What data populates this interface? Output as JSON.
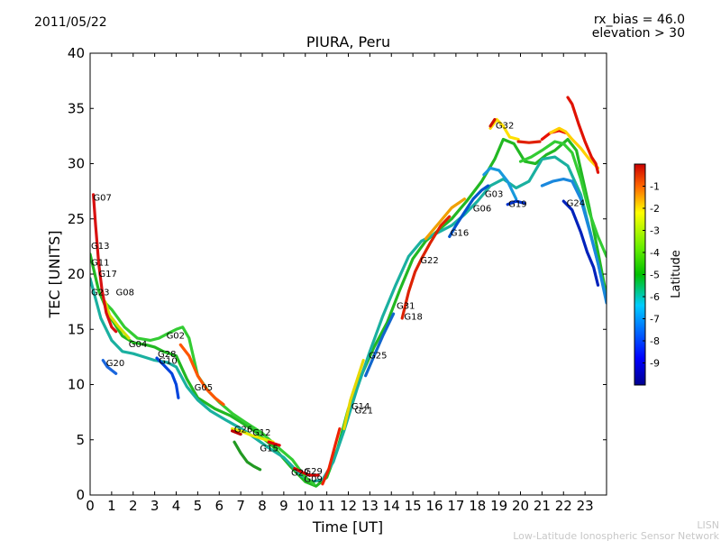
{
  "header": {
    "date": "2011/05/22",
    "rx_bias": "rx_bias = 46.0",
    "elevation": "elevation > 30",
    "title": "PIURA, Peru"
  },
  "footer": {
    "line1": "LISN",
    "line2": "Low-Latitude Ionospheric Sensor Network"
  },
  "colorbar": {
    "label": "Latitude",
    "ticks": [
      "-1",
      "-2",
      "-3",
      "-4",
      "-5",
      "-6",
      "-7",
      "-8",
      "-9"
    ],
    "range": [
      -10,
      0
    ]
  },
  "chart_data": {
    "type": "line",
    "title": "PIURA, Peru",
    "xlabel": "Time [UT]",
    "ylabel": "TEC [UNITS]",
    "xlim": [
      0,
      24
    ],
    "ylim": [
      0,
      40
    ],
    "xticks": [
      "0",
      "1",
      "2",
      "3",
      "4",
      "5",
      "6",
      "7",
      "8",
      "9",
      "10",
      "11",
      "12",
      "13",
      "14",
      "15",
      "16",
      "17",
      "18",
      "19",
      "20",
      "21",
      "22",
      "23"
    ],
    "yticks": [
      "0",
      "5",
      "10",
      "15",
      "20",
      "25",
      "30",
      "35",
      "40"
    ],
    "satellite_labels": [
      {
        "name": "G07",
        "x": 0.1,
        "y": 27.0
      },
      {
        "name": "G13",
        "x": 0.0,
        "y": 22.6
      },
      {
        "name": "G11",
        "x": 0.0,
        "y": 21.1
      },
      {
        "name": "G17",
        "x": 0.35,
        "y": 20.1
      },
      {
        "name": "G23",
        "x": 0.0,
        "y": 18.4
      },
      {
        "name": "G08",
        "x": 1.15,
        "y": 18.4
      },
      {
        "name": "G04",
        "x": 1.75,
        "y": 13.7
      },
      {
        "name": "G20",
        "x": 0.7,
        "y": 12.0
      },
      {
        "name": "G02",
        "x": 3.5,
        "y": 14.5
      },
      {
        "name": "G28",
        "x": 3.1,
        "y": 12.8
      },
      {
        "name": "G10",
        "x": 3.15,
        "y": 12.2
      },
      {
        "name": "G05",
        "x": 4.8,
        "y": 9.8
      },
      {
        "name": "G26",
        "x": 6.65,
        "y": 6.0
      },
      {
        "name": "G12",
        "x": 7.5,
        "y": 5.7
      },
      {
        "name": "G15",
        "x": 7.85,
        "y": 4.3
      },
      {
        "name": "G27",
        "x": 9.3,
        "y": 2.1
      },
      {
        "name": "G29",
        "x": 9.9,
        "y": 2.2
      },
      {
        "name": "G09",
        "x": 9.9,
        "y": 1.5
      },
      {
        "name": "G14",
        "x": 12.1,
        "y": 8.1
      },
      {
        "name": "G21",
        "x": 12.25,
        "y": 7.7
      },
      {
        "name": "G25",
        "x": 12.9,
        "y": 12.7
      },
      {
        "name": "G31",
        "x": 14.2,
        "y": 17.2
      },
      {
        "name": "G18",
        "x": 14.55,
        "y": 16.2
      },
      {
        "name": "G22",
        "x": 15.3,
        "y": 21.3
      },
      {
        "name": "G16",
        "x": 16.7,
        "y": 23.8
      },
      {
        "name": "G06",
        "x": 17.75,
        "y": 26.0
      },
      {
        "name": "G03",
        "x": 18.3,
        "y": 27.3
      },
      {
        "name": "G19",
        "x": 19.4,
        "y": 26.4
      },
      {
        "name": "G32",
        "x": 18.8,
        "y": 33.5
      },
      {
        "name": "G24",
        "x": 22.1,
        "y": 26.5
      }
    ],
    "series": [
      {
        "color": "#22b822",
        "values": [
          [
            0,
            21.8
          ],
          [
            0.4,
            18.5
          ],
          [
            0.9,
            16.2
          ],
          [
            1.5,
            14.4
          ],
          [
            2.0,
            13.8
          ],
          [
            2.6,
            13.6
          ],
          [
            3.0,
            13.4
          ],
          [
            3.4,
            13.0
          ],
          [
            4.0,
            12.6
          ],
          [
            4.5,
            10.5
          ],
          [
            5.0,
            8.8
          ],
          [
            5.8,
            7.8
          ],
          [
            6.5,
            7.2
          ],
          [
            7.5,
            6.0
          ],
          [
            8.5,
            4.4
          ],
          [
            9.3,
            2.6
          ],
          [
            10.0,
            1.2
          ],
          [
            10.5,
            0.8
          ],
          [
            11.0,
            1.6
          ],
          [
            11.5,
            4.2
          ],
          [
            12.0,
            7.8
          ],
          [
            12.6,
            10.8
          ],
          [
            13.2,
            13.4
          ],
          [
            13.8,
            15.6
          ],
          [
            14.4,
            18.6
          ],
          [
            15.0,
            21.4
          ],
          [
            15.6,
            23.0
          ],
          [
            16.2,
            24.0
          ],
          [
            16.8,
            25.0
          ],
          [
            17.5,
            26.6
          ],
          [
            18.2,
            28.4
          ],
          [
            18.8,
            30.4
          ],
          [
            19.2,
            32.2
          ],
          [
            19.7,
            31.8
          ],
          [
            20.2,
            30.2
          ],
          [
            20.7,
            30.0
          ],
          [
            21.2,
            30.8
          ],
          [
            21.6,
            31.2
          ],
          [
            22.2,
            32.2
          ],
          [
            22.6,
            31.2
          ],
          [
            23.2,
            26.0
          ],
          [
            23.6,
            22.0
          ],
          [
            24.0,
            18.0
          ]
        ]
      },
      {
        "color": "#1ab0a0",
        "values": [
          [
            0,
            19.6
          ],
          [
            0.5,
            16.0
          ],
          [
            1.0,
            14.0
          ],
          [
            1.5,
            13.0
          ],
          [
            2.0,
            12.8
          ],
          [
            2.5,
            12.5
          ],
          [
            3.0,
            12.2
          ],
          [
            3.6,
            12.0
          ],
          [
            4.0,
            11.6
          ],
          [
            4.5,
            9.8
          ],
          [
            5.0,
            8.6
          ],
          [
            5.6,
            7.6
          ],
          [
            6.3,
            6.8
          ],
          [
            7.2,
            5.8
          ],
          [
            8.2,
            4.4
          ],
          [
            9.0,
            3.4
          ],
          [
            9.8,
            1.8
          ],
          [
            10.3,
            1.2
          ],
          [
            10.8,
            1.4
          ],
          [
            11.3,
            3.0
          ],
          [
            11.8,
            5.8
          ],
          [
            12.4,
            9.6
          ],
          [
            13.0,
            13.0
          ],
          [
            13.6,
            16.2
          ],
          [
            14.2,
            19.0
          ],
          [
            14.8,
            21.6
          ],
          [
            15.4,
            23.0
          ],
          [
            16.0,
            23.6
          ],
          [
            16.8,
            24.4
          ],
          [
            17.4,
            25.4
          ],
          [
            18.0,
            26.6
          ],
          [
            18.6,
            28.0
          ],
          [
            19.2,
            28.6
          ],
          [
            19.8,
            27.8
          ],
          [
            20.4,
            28.4
          ],
          [
            21.0,
            30.4
          ],
          [
            21.6,
            30.6
          ],
          [
            22.2,
            29.8
          ],
          [
            22.8,
            27.2
          ],
          [
            23.4,
            22.6
          ],
          [
            24.0,
            17.8
          ]
        ]
      },
      {
        "color": "#33cc33",
        "values": [
          [
            0.6,
            17.6
          ],
          [
            1.0,
            16.8
          ],
          [
            1.6,
            15.2
          ],
          [
            2.2,
            14.2
          ],
          [
            2.8,
            14.0
          ],
          [
            3.2,
            14.2
          ],
          [
            3.6,
            14.6
          ],
          [
            4.0,
            15.0
          ],
          [
            4.3,
            15.2
          ],
          [
            4.6,
            14.2
          ],
          [
            5.0,
            10.8
          ],
          [
            5.5,
            9.4
          ],
          [
            6.0,
            8.4
          ],
          [
            6.6,
            7.4
          ],
          [
            7.2,
            6.6
          ],
          [
            8.0,
            5.6
          ],
          [
            8.8,
            4.2
          ],
          [
            9.4,
            3.2
          ],
          [
            10.0,
            1.6
          ],
          [
            10.4,
            1.0
          ]
        ]
      },
      {
        "color": "#d4e000",
        "values": [
          [
            0.7,
            17.5
          ],
          [
            0.9,
            16.3
          ],
          [
            1.3,
            15.3
          ],
          [
            1.8,
            14.2
          ]
        ]
      },
      {
        "color": "#d81010",
        "values": [
          [
            0.15,
            27.2
          ],
          [
            0.25,
            24.5
          ],
          [
            0.4,
            21.0
          ],
          [
            0.55,
            18.6
          ],
          [
            0.75,
            16.5
          ],
          [
            1.0,
            15.2
          ],
          [
            1.2,
            14.8
          ]
        ]
      },
      {
        "color": "#ff5500",
        "values": [
          [
            4.2,
            13.6
          ],
          [
            4.6,
            12.6
          ],
          [
            5.0,
            10.8
          ],
          [
            5.4,
            9.6
          ],
          [
            5.8,
            8.8
          ],
          [
            6.2,
            8.2
          ]
        ]
      },
      {
        "color": "#0044dd",
        "values": [
          [
            3.1,
            12.4
          ],
          [
            3.4,
            11.8
          ],
          [
            3.8,
            11.0
          ],
          [
            4.0,
            10.0
          ],
          [
            4.1,
            8.8
          ]
        ]
      },
      {
        "color": "#1a66dd",
        "values": [
          [
            0.6,
            12.2
          ],
          [
            0.8,
            11.6
          ],
          [
            1.2,
            11.0
          ]
        ]
      },
      {
        "color": "#e8e800",
        "values": [
          [
            6.6,
            6.0
          ],
          [
            7.0,
            5.8
          ],
          [
            7.5,
            5.4
          ],
          [
            8.0,
            5.1
          ],
          [
            8.5,
            4.8
          ]
        ]
      },
      {
        "color": "#bb0000",
        "values": [
          [
            6.6,
            5.8
          ],
          [
            7.0,
            5.5
          ]
        ]
      },
      {
        "color": "#e00000",
        "values": [
          [
            8.3,
            4.8
          ],
          [
            8.8,
            4.5
          ]
        ]
      },
      {
        "color": "#229922",
        "values": [
          [
            6.7,
            4.8
          ],
          [
            7.0,
            3.8
          ],
          [
            7.3,
            3.0
          ],
          [
            7.6,
            2.6
          ],
          [
            7.9,
            2.3
          ]
        ]
      },
      {
        "color": "#d40000",
        "values": [
          [
            9.5,
            2.4
          ],
          [
            9.8,
            2.1
          ],
          [
            10.2,
            1.8
          ],
          [
            10.6,
            1.8
          ]
        ]
      },
      {
        "color": "#e6d800",
        "values": [
          [
            11.8,
            6.0
          ],
          [
            12.1,
            8.6
          ],
          [
            12.4,
            10.4
          ],
          [
            12.7,
            12.2
          ]
        ]
      },
      {
        "color": "#ee2200",
        "values": [
          [
            10.8,
            1.0
          ],
          [
            11.1,
            2.4
          ],
          [
            11.4,
            4.6
          ],
          [
            11.6,
            6.0
          ]
        ]
      },
      {
        "color": "#1166cc",
        "values": [
          [
            12.8,
            10.8
          ],
          [
            13.2,
            12.6
          ],
          [
            13.6,
            14.4
          ],
          [
            14.1,
            16.4
          ]
        ]
      },
      {
        "color": "#dd2200",
        "values": [
          [
            14.5,
            16.0
          ],
          [
            14.8,
            18.4
          ],
          [
            15.1,
            20.2
          ],
          [
            15.4,
            21.4
          ],
          [
            15.8,
            22.8
          ],
          [
            16.3,
            24.4
          ],
          [
            16.7,
            25.2
          ]
        ]
      },
      {
        "color": "#f0a000",
        "values": [
          [
            15.6,
            23.2
          ],
          [
            16.2,
            24.6
          ],
          [
            16.8,
            26.0
          ],
          [
            17.4,
            26.8
          ]
        ]
      },
      {
        "color": "#0055cc",
        "values": [
          [
            16.7,
            23.4
          ],
          [
            17.0,
            24.4
          ],
          [
            17.4,
            25.6
          ],
          [
            17.8,
            26.8
          ],
          [
            18.2,
            27.6
          ],
          [
            18.5,
            28.0
          ]
        ]
      },
      {
        "color": "#ffe000",
        "values": [
          [
            18.6,
            33.2
          ],
          [
            18.9,
            34.0
          ],
          [
            19.2,
            33.4
          ],
          [
            19.5,
            32.4
          ],
          [
            19.9,
            32.2
          ]
        ]
      },
      {
        "color": "#cc1100",
        "values": [
          [
            18.6,
            33.4
          ],
          [
            18.8,
            34.0
          ]
        ]
      },
      {
        "color": "#e02000",
        "values": [
          [
            19.9,
            32.0
          ],
          [
            20.4,
            31.9
          ],
          [
            20.9,
            32.0
          ]
        ]
      },
      {
        "color": "#1899dd",
        "values": [
          [
            18.3,
            29.0
          ],
          [
            18.6,
            29.6
          ],
          [
            19.0,
            29.4
          ],
          [
            19.4,
            28.4
          ],
          [
            19.8,
            26.8
          ]
        ]
      },
      {
        "color": "#0033cc",
        "values": [
          [
            19.4,
            26.3
          ],
          [
            19.8,
            26.6
          ],
          [
            20.2,
            26.4
          ]
        ]
      },
      {
        "color": "#e81000",
        "values": [
          [
            21.0,
            32.2
          ],
          [
            21.4,
            32.8
          ],
          [
            21.8,
            33.0
          ],
          [
            22.1,
            32.8
          ]
        ]
      },
      {
        "color": "#ffd000",
        "values": [
          [
            21.4,
            32.8
          ],
          [
            21.8,
            33.2
          ],
          [
            22.1,
            32.9
          ],
          [
            22.4,
            32.2
          ],
          [
            22.8,
            31.4
          ],
          [
            23.2,
            30.4
          ],
          [
            23.6,
            29.6
          ]
        ]
      },
      {
        "color": "#e01200",
        "values": [
          [
            22.2,
            36.0
          ],
          [
            22.4,
            35.4
          ],
          [
            22.7,
            33.6
          ],
          [
            23.0,
            32.0
          ],
          [
            23.3,
            30.6
          ],
          [
            23.5,
            30.0
          ],
          [
            23.6,
            29.2
          ]
        ]
      },
      {
        "color": "#1a88dd",
        "values": [
          [
            21.0,
            28.0
          ],
          [
            21.5,
            28.4
          ],
          [
            22.0,
            28.6
          ],
          [
            22.4,
            28.4
          ],
          [
            22.8,
            26.8
          ],
          [
            23.2,
            24.0
          ],
          [
            23.6,
            21.0
          ],
          [
            24.0,
            17.4
          ]
        ]
      },
      {
        "color": "#0022bb",
        "values": [
          [
            22.0,
            26.6
          ],
          [
            22.4,
            25.8
          ],
          [
            22.8,
            23.8
          ],
          [
            23.1,
            22.0
          ],
          [
            23.4,
            20.6
          ],
          [
            23.6,
            19.0
          ]
        ]
      },
      {
        "color": "#33cc33",
        "values": [
          [
            20.0,
            30.2
          ],
          [
            20.5,
            30.6
          ],
          [
            21.0,
            31.2
          ],
          [
            21.6,
            32.0
          ],
          [
            22.0,
            31.8
          ],
          [
            22.4,
            31.0
          ],
          [
            22.8,
            28.6
          ],
          [
            23.2,
            25.6
          ],
          [
            23.6,
            23.4
          ],
          [
            24.0,
            21.6
          ]
        ]
      }
    ]
  }
}
